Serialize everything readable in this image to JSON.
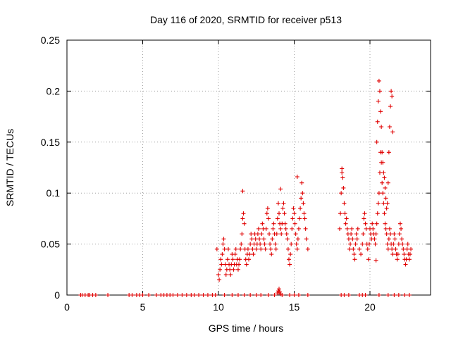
{
  "chart_data": {
    "type": "scatter",
    "title": "Day 116 of 2020, SRMTID for receiver p513",
    "xlabel": "GPS time / hours",
    "ylabel": "SRMTID / TECUs",
    "xlim": [
      0,
      24
    ],
    "ylim": [
      0,
      0.25
    ],
    "x_ticks": [
      0,
      5,
      10,
      15,
      20
    ],
    "x_tick_labels": [
      "0",
      "5",
      "10",
      "15",
      "20"
    ],
    "y_ticks": [
      0,
      0.05,
      0.1,
      0.15,
      0.2,
      0.25
    ],
    "y_tick_labels": [
      "0",
      "0.05",
      "0.1",
      "0.15",
      "0.2",
      "0.25"
    ],
    "grid": true,
    "marker": "+",
    "marker_color": "#e00000",
    "series": [
      {
        "name": "SRMTID",
        "x": [
          0.9,
          1.0,
          1.2,
          1.4,
          1.5,
          1.7,
          1.9,
          2.7,
          4.1,
          4.3,
          4.6,
          4.8,
          5.0,
          5.4,
          5.9,
          6.2,
          6.4,
          6.6,
          6.8,
          7.0,
          7.3,
          7.6,
          7.9,
          8.2,
          8.4,
          8.7,
          9.0,
          9.3,
          9.6,
          9.8,
          10.4,
          10.9,
          11.3,
          11.7,
          12.1,
          12.5,
          12.8,
          13.3,
          13.7,
          14.2,
          14.7,
          15.0,
          15.3,
          15.9,
          18.1,
          18.3,
          18.6,
          19.3,
          19.5,
          19.7,
          20.6,
          21.2,
          21.6,
          21.9,
          22.3,
          22.6,
          9.9,
          10.0,
          10.05,
          10.1,
          10.15,
          10.2,
          10.25,
          10.3,
          10.35,
          10.4,
          10.45,
          10.5,
          10.55,
          10.6,
          10.65,
          10.7,
          10.75,
          10.8,
          10.85,
          10.9,
          10.95,
          11.0,
          11.05,
          11.1,
          11.15,
          11.2,
          11.25,
          11.3,
          11.35,
          11.4,
          11.45,
          11.5,
          11.55,
          11.6,
          11.65,
          11.7,
          11.75,
          11.8,
          11.85,
          11.9,
          11.95,
          12.0,
          12.05,
          12.1,
          12.15,
          12.2,
          12.25,
          12.3,
          12.35,
          12.4,
          12.45,
          12.5,
          12.55,
          12.6,
          12.65,
          12.7,
          12.75,
          12.8,
          12.85,
          12.9,
          12.95,
          13.0,
          13.05,
          13.1,
          13.15,
          13.2,
          13.25,
          13.3,
          13.35,
          13.4,
          13.45,
          13.5,
          13.55,
          13.6,
          13.65,
          13.7,
          13.75,
          13.8,
          13.85,
          13.9,
          13.95,
          14.0,
          14.05,
          14.1,
          14.15,
          14.2,
          14.25,
          14.3,
          14.35,
          14.4,
          14.45,
          14.5,
          14.55,
          14.6,
          14.65,
          14.7,
          14.75,
          14.8,
          14.85,
          14.9,
          14.95,
          15.0,
          15.05,
          15.1,
          15.15,
          15.2,
          15.25,
          15.3,
          15.35,
          15.4,
          15.45,
          15.5,
          15.55,
          15.6,
          15.65,
          15.7,
          15.75,
          15.8,
          15.9,
          18.0,
          18.05,
          18.1,
          18.15,
          18.2,
          18.25,
          18.3,
          18.35,
          18.4,
          18.45,
          18.5,
          18.55,
          18.6,
          18.65,
          18.7,
          18.75,
          18.8,
          18.85,
          18.9,
          18.95,
          19.0,
          19.05,
          19.1,
          19.15,
          19.2,
          19.3,
          19.4,
          19.5,
          19.55,
          19.6,
          19.65,
          19.7,
          19.75,
          19.8,
          19.85,
          19.9,
          19.95,
          20.0,
          20.05,
          20.1,
          20.15,
          20.2,
          20.25,
          20.3,
          20.35,
          20.4,
          20.45,
          20.5,
          20.55,
          20.6,
          20.65,
          20.7,
          20.75,
          20.8,
          20.85,
          20.9,
          20.95,
          21.0,
          21.05,
          21.1,
          21.15,
          21.2,
          21.25,
          21.3,
          21.35,
          21.4,
          21.45,
          21.5,
          21.55,
          21.6,
          21.65,
          21.7,
          21.75,
          21.8,
          21.85,
          21.9,
          21.95,
          22.0,
          22.05,
          22.1,
          22.15,
          22.2,
          22.25,
          22.3,
          22.35,
          22.4,
          22.45,
          22.5,
          22.55,
          22.6,
          22.65,
          22.7,
          20.45,
          20.5,
          20.55,
          20.6,
          20.65,
          20.7,
          20.75,
          20.8,
          20.85,
          20.9,
          20.95,
          21.0,
          21.05,
          21.1,
          21.15,
          21.2,
          21.25,
          21.3,
          21.35,
          21.4,
          21.45,
          21.5,
          13.9,
          13.95,
          14.0,
          14.05,
          14.1,
          11.6,
          14.1,
          15.2,
          18.15,
          20.4
        ],
        "y": [
          0,
          0,
          0,
          0,
          0,
          0,
          0,
          0,
          0,
          0,
          0,
          0,
          0,
          0,
          0,
          0,
          0,
          0,
          0,
          0,
          0,
          0,
          0,
          0,
          0,
          0,
          0,
          0,
          0,
          0,
          0,
          0,
          0,
          0,
          0,
          0,
          0,
          0,
          0,
          0,
          0,
          0,
          0,
          0,
          0,
          0,
          0,
          0,
          0,
          0,
          0,
          0,
          0,
          0,
          0,
          0,
          0.045,
          0.02,
          0.015,
          0.025,
          0.035,
          0.03,
          0.04,
          0.05,
          0.055,
          0.045,
          0.03,
          0.02,
          0.025,
          0.035,
          0.045,
          0.03,
          0.025,
          0.02,
          0.03,
          0.04,
          0.035,
          0.025,
          0.03,
          0.04,
          0.045,
          0.03,
          0.035,
          0.025,
          0.03,
          0.035,
          0.045,
          0.05,
          0.06,
          0.075,
          0.08,
          0.07,
          0.045,
          0.035,
          0.03,
          0.04,
          0.045,
          0.035,
          0.04,
          0.05,
          0.06,
          0.055,
          0.045,
          0.04,
          0.05,
          0.06,
          0.055,
          0.045,
          0.05,
          0.06,
          0.065,
          0.055,
          0.05,
          0.045,
          0.06,
          0.07,
          0.065,
          0.055,
          0.05,
          0.045,
          0.065,
          0.08,
          0.085,
          0.075,
          0.06,
          0.05,
          0.045,
          0.04,
          0.055,
          0.065,
          0.07,
          0.06,
          0.05,
          0.045,
          0.06,
          0.075,
          0.09,
          0.08,
          0.07,
          0.065,
          0.06,
          0.07,
          0.085,
          0.09,
          0.08,
          0.07,
          0.065,
          0.06,
          0.055,
          0.045,
          0.035,
          0.03,
          0.04,
          0.05,
          0.065,
          0.075,
          0.085,
          0.08,
          0.07,
          0.06,
          0.05,
          0.045,
          0.055,
          0.065,
          0.075,
          0.085,
          0.095,
          0.11,
          0.1,
          0.09,
          0.08,
          0.075,
          0.065,
          0.055,
          0.045,
          0.065,
          0.08,
          0.1,
          0.12,
          0.115,
          0.105,
          0.09,
          0.08,
          0.07,
          0.075,
          0.065,
          0.06,
          0.055,
          0.045,
          0.05,
          0.06,
          0.065,
          0.055,
          0.045,
          0.04,
          0.035,
          0.05,
          0.06,
          0.055,
          0.065,
          0.045,
          0.04,
          0.05,
          0.06,
          0.075,
          0.08,
          0.07,
          0.065,
          0.05,
          0.045,
          0.035,
          0.05,
          0.065,
          0.06,
          0.055,
          0.07,
          0.065,
          0.06,
          0.055,
          0.05,
          0.06,
          0.07,
          0.08,
          0.09,
          0.1,
          0.12,
          0.14,
          0.13,
          0.11,
          0.1,
          0.09,
          0.08,
          0.07,
          0.065,
          0.06,
          0.05,
          0.045,
          0.055,
          0.065,
          0.06,
          0.05,
          0.045,
          0.04,
          0.05,
          0.06,
          0.055,
          0.045,
          0.04,
          0.035,
          0.04,
          0.05,
          0.06,
          0.07,
          0.065,
          0.055,
          0.05,
          0.045,
          0.04,
          0.035,
          0.03,
          0.035,
          0.045,
          0.05,
          0.04,
          0.035,
          0.04,
          0.045,
          0.15,
          0.17,
          0.19,
          0.21,
          0.2,
          0.18,
          0.165,
          0.14,
          0.13,
          0.12,
          0.115,
          0.105,
          0.095,
          0.085,
          0.09,
          0.11,
          0.14,
          0.165,
          0.185,
          0.2,
          0.195,
          0.16,
          0.002,
          0.004,
          0.006,
          0.003,
          0.001,
          0.102,
          0.104,
          0.116,
          0.124,
          0.034
        ]
      }
    ]
  }
}
